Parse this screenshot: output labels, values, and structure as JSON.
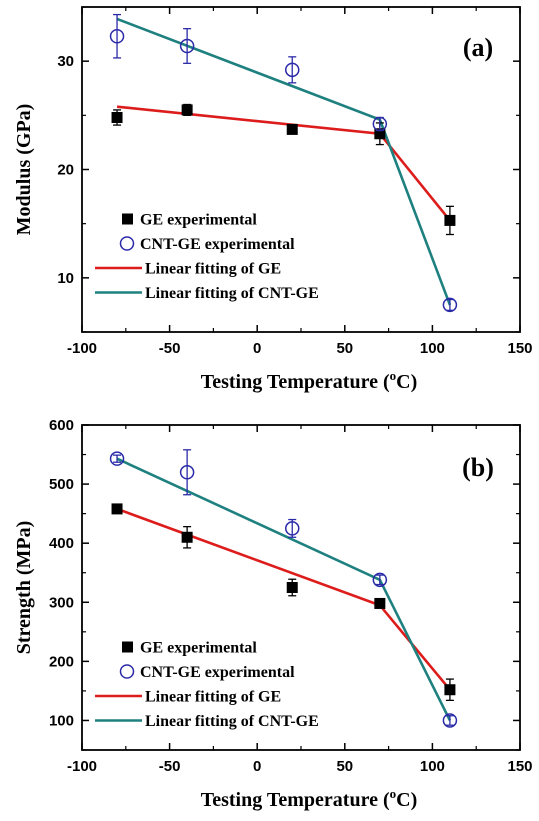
{
  "chart_data": [
    {
      "type": "scatter",
      "panel_label": "(a)",
      "xlabel_main": "Testing Temperature (",
      "xlabel_sup": "o",
      "xlabel_end": "C)",
      "ylabel": "Modulus (GPa)",
      "xlim": [
        -100,
        150
      ],
      "ylim": [
        5,
        35
      ],
      "xticks": [
        -100,
        -50,
        0,
        50,
        100,
        150
      ],
      "yticks": [
        10,
        20,
        30
      ],
      "legend_position": "bottom-left",
      "series": [
        {
          "name": "GE experimental",
          "kind": "marker",
          "marker": "filled-square",
          "color": "#000000",
          "x": [
            -80,
            -40,
            20,
            70,
            110
          ],
          "y": [
            24.8,
            25.5,
            23.7,
            23.3,
            15.3
          ],
          "err": [
            0.7,
            0.5,
            0.4,
            1.0,
            1.3
          ]
        },
        {
          "name": "CNT-GE experimental",
          "kind": "marker",
          "marker": "open-circle",
          "color": "#2a2aa8",
          "x": [
            -80,
            -40,
            20,
            70,
            110
          ],
          "y": [
            32.3,
            31.4,
            29.2,
            24.2,
            7.5
          ],
          "err": [
            2.0,
            1.6,
            1.2,
            0.6,
            0.5
          ]
        },
        {
          "name": "Linear fitting of GE",
          "kind": "line",
          "color": "#dd1c1c",
          "x": [
            -80,
            70,
            110
          ],
          "y": [
            25.8,
            23.3,
            15.3
          ]
        },
        {
          "name": "Linear fitting of CNT-GE",
          "kind": "line",
          "color": "#1f8080",
          "x": [
            -80,
            70,
            110
          ],
          "y": [
            33.9,
            24.6,
            7.5
          ]
        }
      ]
    },
    {
      "type": "scatter",
      "panel_label": "(b)",
      "xlabel_main": "Testing Temperature (",
      "xlabel_sup": "o",
      "xlabel_end": "C)",
      "ylabel": "Strength (MPa)",
      "xlim": [
        -100,
        150
      ],
      "ylim": [
        50,
        600
      ],
      "xticks": [
        -100,
        -50,
        0,
        50,
        100,
        150
      ],
      "yticks": [
        100,
        200,
        300,
        400,
        500,
        600
      ],
      "legend_position": "bottom-left",
      "series": [
        {
          "name": "GE experimental",
          "kind": "marker",
          "marker": "filled-square",
          "color": "#000000",
          "x": [
            -80,
            -40,
            20,
            70,
            110
          ],
          "y": [
            458,
            410,
            325,
            298,
            152
          ],
          "err": [
            5,
            18,
            14,
            6,
            18
          ]
        },
        {
          "name": "CNT-GE experimental",
          "kind": "marker",
          "marker": "open-circle",
          "color": "#2a2aa8",
          "x": [
            -80,
            -40,
            20,
            70,
            110
          ],
          "y": [
            543,
            520,
            425,
            338,
            100
          ],
          "err": [
            6,
            38,
            15,
            8,
            8
          ]
        },
        {
          "name": "Linear fitting of GE",
          "kind": "line",
          "color": "#dd1c1c",
          "x": [
            -80,
            70,
            110
          ],
          "y": [
            458,
            295,
            152
          ]
        },
        {
          "name": "Linear fitting of CNT-GE",
          "kind": "line",
          "color": "#1f8080",
          "x": [
            -80,
            70,
            110
          ],
          "y": [
            543,
            338,
            100
          ]
        }
      ]
    }
  ]
}
